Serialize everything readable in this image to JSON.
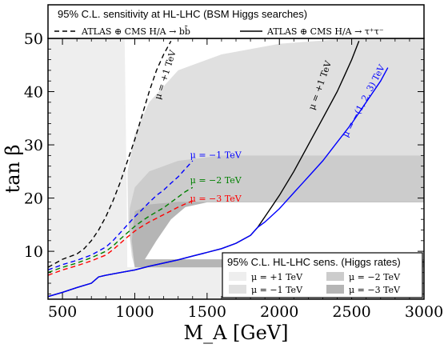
{
  "chart_data": {
    "type": "line",
    "title": "95% C.L. sensitivity at HL-LHC (BSM Higgs searches)",
    "xlabel": "M_A [GeV]",
    "ylabel": "tan β",
    "xlim": [
      400,
      3000
    ],
    "ylim": [
      1,
      50
    ],
    "xticks": [
      500,
      1000,
      1500,
      2000,
      2500,
      3000
    ],
    "yticks": [
      10,
      20,
      30,
      40,
      50
    ],
    "grid": false,
    "legend_top": [
      {
        "label": "ATLAS ⊕ CMS H/A → bb̄",
        "style": "dashed",
        "color": "#000000"
      },
      {
        "label": "ATLAS ⊕ CMS H/A → τ⁺τ⁻",
        "style": "solid",
        "color": "#000000"
      }
    ],
    "legend_rates_title": "95% C.L. HL-LHC sens. (Higgs rates)",
    "legend_rates": [
      {
        "label": "μ = +1 TeV",
        "color": "#eeeeee"
      },
      {
        "label": "μ = −1 TeV",
        "color": "#e0e0e0"
      },
      {
        "label": "μ = −2 TeV",
        "color": "#cccccc"
      },
      {
        "label": "μ = −3 TeV",
        "color": "#b5b5b5"
      }
    ],
    "series": [
      {
        "name": "μ = +1 TeV",
        "style": "dashed",
        "color": "#000000",
        "x": [
          400,
          500,
          600,
          650,
          700,
          750,
          800,
          850,
          900,
          950,
          1000,
          1050,
          1100,
          1150,
          1200,
          1250
        ],
        "y": [
          7,
          8.5,
          9.5,
          10.5,
          12,
          14,
          16.5,
          19.5,
          23,
          27,
          31,
          35.5,
          40,
          44,
          47,
          49.5
        ]
      },
      {
        "name": "μ = −1 TeV",
        "style": "dashed",
        "color": "#0000ff",
        "x": [
          400,
          500,
          600,
          700,
          800,
          850,
          900,
          950,
          1000,
          1050,
          1100,
          1150,
          1200,
          1250,
          1300,
          1350,
          1400
        ],
        "y": [
          6.5,
          7.5,
          8.3,
          9.3,
          10.8,
          12,
          13.5,
          15,
          16.5,
          17.8,
          19.2,
          20.5,
          21.5,
          22.8,
          24,
          25.5,
          27
        ]
      },
      {
        "name": "μ = −2 TeV",
        "style": "dashed",
        "color": "#008000",
        "x": [
          400,
          500,
          600,
          700,
          800,
          850,
          900,
          950,
          1000,
          1050,
          1100,
          1150,
          1200,
          1250,
          1300,
          1350,
          1400
        ],
        "y": [
          6,
          7,
          7.8,
          8.8,
          10,
          11,
          12.3,
          13.5,
          14.7,
          15.7,
          16.6,
          17.4,
          18.2,
          19.2,
          20.2,
          21.2,
          22
        ]
      },
      {
        "name": "μ = −3 TeV",
        "style": "dashed",
        "color": "#ff0000",
        "x": [
          400,
          500,
          600,
          700,
          800,
          850,
          900,
          950,
          1000,
          1050,
          1100,
          1150,
          1200,
          1250,
          1300,
          1350,
          1400
        ],
        "y": [
          5.5,
          6.5,
          7.3,
          8.2,
          9.3,
          10.3,
          11.5,
          12.7,
          13.8,
          14.7,
          15.5,
          16.2,
          16.9,
          17.6,
          18.3,
          18.9,
          19.5
        ]
      },
      {
        "name": "μ = +1 TeV",
        "style": "solid",
        "color": "#000000",
        "x": [
          400,
          500,
          600,
          700,
          750,
          800,
          900,
          1000,
          1100,
          1200,
          1300,
          1400,
          1500,
          1600,
          1700,
          1800,
          1850,
          1900,
          1950,
          2000,
          2100,
          2200,
          2300,
          2400,
          2450,
          2500,
          2550
        ],
        "y": [
          1.5,
          2.3,
          3.2,
          4,
          5.2,
          5.5,
          6,
          6.5,
          7.2,
          7.8,
          8.4,
          9.1,
          9.8,
          10.5,
          11.5,
          13,
          14.5,
          16.5,
          18.5,
          20.5,
          25,
          30,
          35,
          40,
          43,
          46,
          49.5
        ]
      },
      {
        "name": "μ = −(1, 2, 3) TeV",
        "style": "solid",
        "color": "#0000ff",
        "x": [
          400,
          500,
          600,
          700,
          750,
          800,
          900,
          1000,
          1100,
          1200,
          1300,
          1400,
          1500,
          1600,
          1700,
          1800,
          1850,
          1900,
          2000,
          2100,
          2200,
          2300,
          2400,
          2500,
          2600,
          2700,
          2750
        ],
        "y": [
          1.5,
          2.3,
          3.2,
          4,
          5.2,
          5.5,
          6,
          6.5,
          7.2,
          7.8,
          8.4,
          9.1,
          9.8,
          10.5,
          11.5,
          13,
          14.5,
          15.5,
          18,
          21,
          24,
          27,
          30.5,
          34,
          38,
          42,
          44.5
        ]
      }
    ],
    "annotations": [
      {
        "text": "μ = +1 TeV",
        "color": "#000000",
        "x": 1230,
        "y": 43,
        "angle": -72
      },
      {
        "text": "μ = −1 TeV",
        "color": "#0000ff",
        "x": 1560,
        "y": 27.5,
        "angle": 0
      },
      {
        "text": "μ = −2 TeV",
        "color": "#008000",
        "x": 1560,
        "y": 22.8,
        "angle": 0
      },
      {
        "text": "μ = −3 TeV",
        "color": "#ff0000",
        "x": 1560,
        "y": 19.3,
        "angle": 0
      },
      {
        "text": "μ = +1 TeV",
        "color": "#000000",
        "x": 2300,
        "y": 41,
        "angle": -70
      },
      {
        "text": "μ = −(1, 2, 3) TeV",
        "color": "#0000ff",
        "x": 2600,
        "y": 38,
        "angle": -62
      }
    ]
  }
}
